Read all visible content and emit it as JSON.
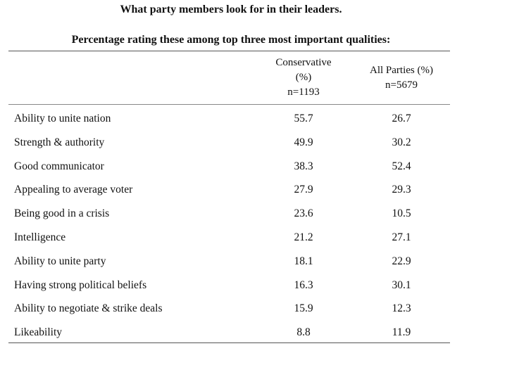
{
  "title": "What party members look for in their leaders.",
  "subtitle": "Percentage rating these among top three most important qualities:",
  "chart_data": {
    "type": "table",
    "columns": [
      {
        "lines": [
          "Conservative",
          "(%)",
          "n=1193"
        ]
      },
      {
        "lines": [
          "All Parties (%)",
          "n=5679"
        ]
      }
    ],
    "rows": [
      {
        "label": "Ability to unite nation",
        "values": [
          "55.7",
          "26.7"
        ]
      },
      {
        "label": "Strength & authority",
        "values": [
          "49.9",
          "30.2"
        ]
      },
      {
        "label": "Good communicator",
        "values": [
          "38.3",
          "52.4"
        ]
      },
      {
        "label": "Appealing to average voter",
        "values": [
          "27.9",
          "29.3"
        ]
      },
      {
        "label": "Being good in a crisis",
        "values": [
          "23.6",
          "10.5"
        ]
      },
      {
        "label": "Intelligence",
        "values": [
          "21.2",
          "27.1"
        ]
      },
      {
        "label": "Ability to unite party",
        "values": [
          "18.1",
          "22.9"
        ]
      },
      {
        "label": "Having strong political beliefs",
        "values": [
          "16.3",
          "30.1"
        ]
      },
      {
        "label": "Ability to negotiate & strike deals",
        "values": [
          "15.9",
          "12.3"
        ]
      },
      {
        "label": "Likeability",
        "values": [
          "8.8",
          "11.9"
        ]
      }
    ]
  }
}
